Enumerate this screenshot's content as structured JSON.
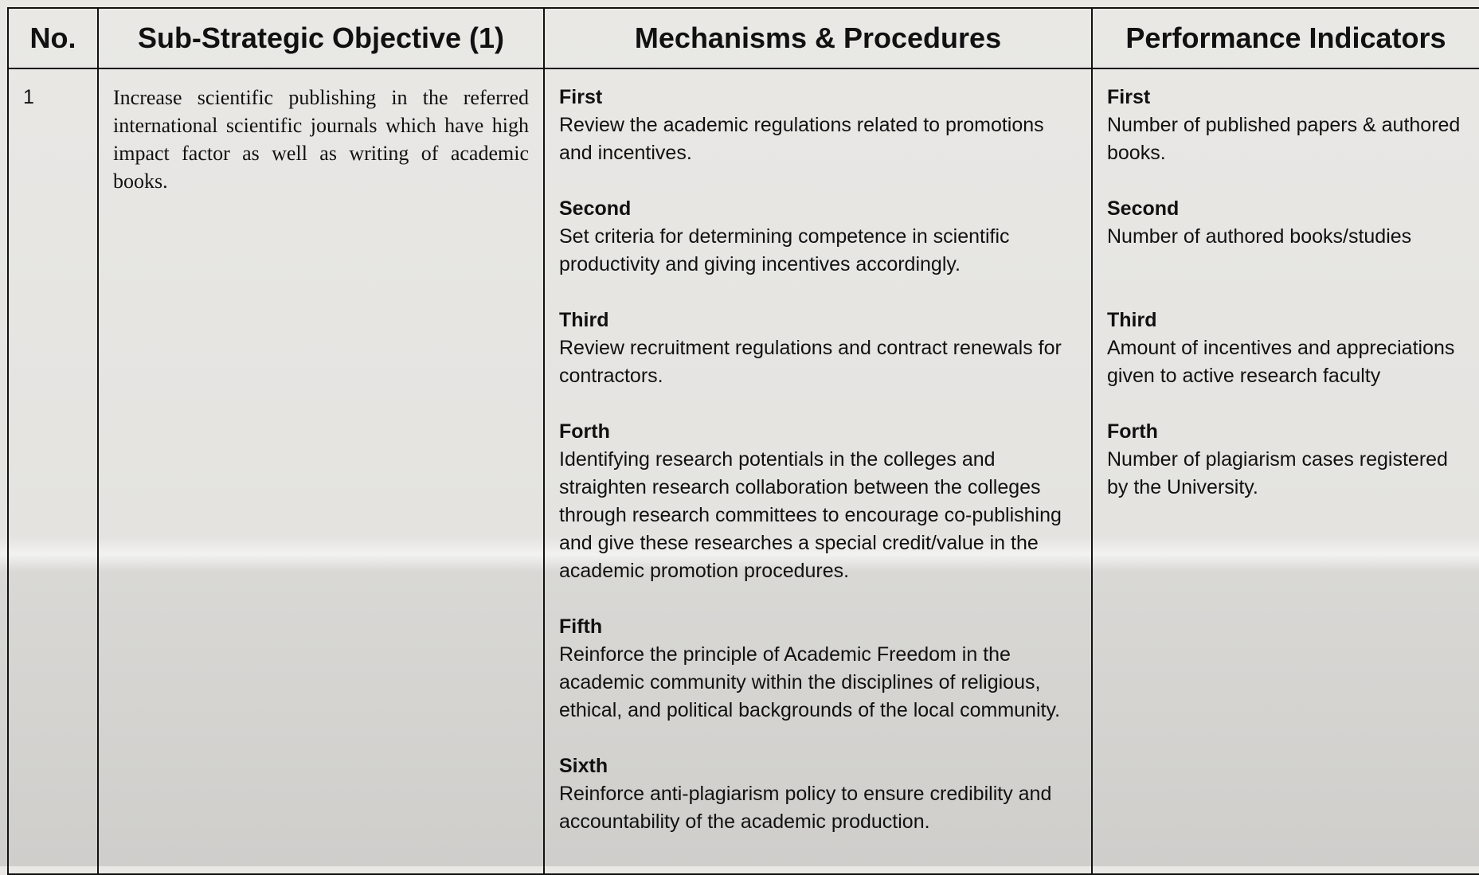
{
  "table": {
    "headers": [
      "No.",
      "Sub-Strategic Objective (1)",
      "Mechanisms & Procedures",
      "Performance Indicators"
    ],
    "rows": [
      {
        "number": "1",
        "objective": "Increase scientific publishing in the referred international scientific journals which have high impact factor as well as writing of academic books.",
        "mechanisms": [
          {
            "label": "First",
            "text": "Review the academic regulations related to promotions and incentives."
          },
          {
            "label": "Second",
            "text": "Set criteria for determining competence in scientific productivity and giving incentives accordingly."
          },
          {
            "label": "Third",
            "text": "Review recruitment regulations and contract renewals for contractors."
          },
          {
            "label": "Forth",
            "text": "Identifying research potentials in the colleges and straighten research collaboration between the colleges through research committees to encourage co-publishing and give these researches a special credit/value in the academic promotion procedures."
          },
          {
            "label": "Fifth",
            "text": "Reinforce the principle of Academic Freedom in the academic community within the disciplines of religious, ethical, and political backgrounds of the local community."
          },
          {
            "label": "Sixth",
            "text": "Reinforce anti-plagiarism policy to ensure credibility and accountability of the academic production."
          }
        ],
        "indicators": [
          {
            "label": "First",
            "text": "Number of published papers & authored books."
          },
          {
            "label": "Second",
            "text": "Number of authored books/studies"
          },
          {
            "label": "Third",
            "text": "Amount of incentives and appreciations given to active research faculty"
          },
          {
            "label": "Forth",
            "text": "Number of plagiarism cases registered by the University."
          }
        ]
      }
    ]
  }
}
